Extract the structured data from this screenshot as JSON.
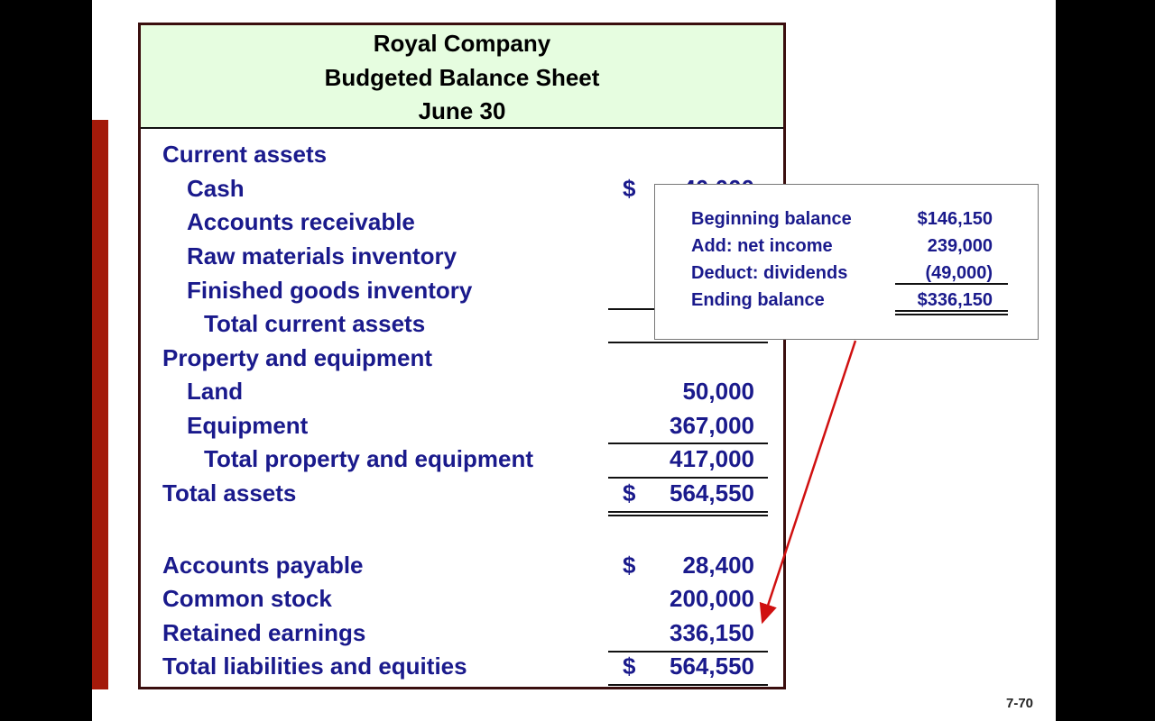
{
  "header": {
    "company": "Royal Company",
    "title": "Budgeted Balance Sheet",
    "date": "June 30"
  },
  "rows": [
    {
      "label": "Current assets",
      "indent": 0,
      "dollar": "",
      "amount": ""
    },
    {
      "label": "Cash",
      "indent": 1,
      "dollar": "$",
      "amount": "40,000"
    },
    {
      "label": "Accounts receivable",
      "indent": 1,
      "dollar": "",
      "amount": ""
    },
    {
      "label": "Raw materials inventory",
      "indent": 1,
      "dollar": "",
      "amount": ""
    },
    {
      "label": "Finished goods inventory",
      "indent": 1,
      "dollar": "",
      "amount": ""
    },
    {
      "label": "Total current assets",
      "indent": 2,
      "dollar": "",
      "amount": ""
    },
    {
      "label": "Property and equipment",
      "indent": 0,
      "dollar": "",
      "amount": ""
    },
    {
      "label": "Land",
      "indent": 1,
      "dollar": "",
      "amount": "50,000"
    },
    {
      "label": "Equipment",
      "indent": 1,
      "dollar": "",
      "amount": "367,000"
    },
    {
      "label": "Total property and equipment",
      "indent": 2,
      "dollar": "",
      "amount": "417,000"
    },
    {
      "label": "Total assets",
      "indent": 0,
      "dollar": "$",
      "amount": "564,550"
    },
    {
      "label": "Accounts payable",
      "indent": 0,
      "dollar": "$",
      "amount": "28,400"
    },
    {
      "label": "Common stock",
      "indent": 0,
      "dollar": "",
      "amount": "200,000"
    },
    {
      "label": "Retained earnings",
      "indent": 0,
      "dollar": "",
      "amount": "336,150"
    },
    {
      "label": "Total liabilities and equities",
      "indent": 0,
      "dollar": "$",
      "amount": "564,550"
    }
  ],
  "popup": {
    "rows": [
      {
        "label": "Beginning balance",
        "value": "$146,150"
      },
      {
        "label": "Add: net income",
        "value": "239,000"
      },
      {
        "label": "Deduct: dividends",
        "value": "(49,000)"
      },
      {
        "label": "Ending balance",
        "value": "$336,150"
      }
    ]
  },
  "slide_number": "7-70",
  "colors": {
    "text": "#1a1a8c",
    "header_bg": "#e6fde0",
    "accent_bar": "#a31a0a",
    "arrow": "#d01010"
  }
}
